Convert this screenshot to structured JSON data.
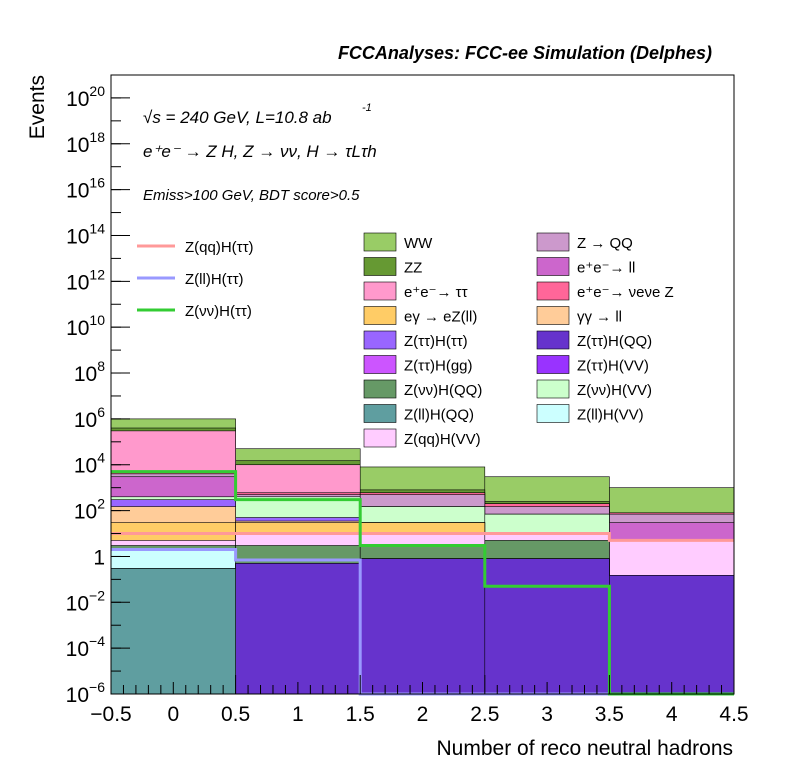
{
  "chart_data": {
    "type": "stacked-step-histogram",
    "title": "FCCAnalyses: FCC-ee Simulation (Delphes)",
    "annotations": {
      "energy": "√s = 240 GeV, L=10.8 ab",
      "energy_sup": "-1",
      "process": "e⁺e⁻ → Z H, Z → νν, H → τLτh",
      "selection": "Emiss>100 GeV, BDT score>0.5"
    },
    "xlabel": "Number of reco neutral hadrons",
    "ylabel": "Events",
    "xlim": [
      -0.5,
      4.5
    ],
    "ylim": [
      1e-06,
      1e+21
    ],
    "yscale": "log",
    "bin_edges": [
      -0.5,
      0.5,
      1.5,
      2.5,
      3.5,
      4.5
    ],
    "x_ticks": [
      "−0.5",
      "0",
      "0.5",
      "1",
      "1.5",
      "2",
      "2.5",
      "3",
      "3.5",
      "4",
      "4.5"
    ],
    "y_ticks": [
      {
        "base": "10",
        "exp": "−6",
        "value": 1e-06
      },
      {
        "base": "10",
        "exp": "−4",
        "value": 0.0001
      },
      {
        "base": "10",
        "exp": "−2",
        "value": 0.01
      },
      {
        "base": "1",
        "exp": "",
        "value": 1
      },
      {
        "base": "10",
        "exp": "2",
        "value": 100.0
      },
      {
        "base": "10",
        "exp": "4",
        "value": 10000.0
      },
      {
        "base": "10",
        "exp": "6",
        "value": 1000000.0
      },
      {
        "base": "10",
        "exp": "8",
        "value": 100000000.0
      },
      {
        "base": "10",
        "exp": "10",
        "value": 10000000000.0
      },
      {
        "base": "10",
        "exp": "12",
        "value": 1000000000000.0
      },
      {
        "base": "10",
        "exp": "14",
        "value": 100000000000000.0
      },
      {
        "base": "10",
        "exp": "16",
        "value": 1e+16
      },
      {
        "base": "10",
        "exp": "18",
        "value": 1e+18
      },
      {
        "base": "10",
        "exp": "20",
        "value": 1e+20
      }
    ],
    "stack_cumulative": [
      {
        "name": "Z(ll)H(QQ)",
        "color": "#5f9ea0",
        "values": [
          0.3,
          1e-06,
          1e-06,
          1e-06,
          1e-06
        ]
      },
      {
        "name": "Z(ττ)H(QQ)",
        "color": "#6633cc",
        "values": [
          0.3,
          0.5,
          0.8,
          0.8,
          0.15
        ]
      },
      {
        "name": "Z(ττ)H(gg)",
        "color": "#cc55ff",
        "values": [
          0.3,
          0.5,
          0.8,
          0.8,
          0.15
        ]
      },
      {
        "name": "Z(ll)H(VV)",
        "color": "#ccffff",
        "values": [
          2,
          0.5,
          0.8,
          0.8,
          0.15
        ]
      },
      {
        "name": "Z(νν)H(QQ)",
        "color": "#669966",
        "values": [
          3,
          3,
          3,
          5,
          0.15
        ]
      },
      {
        "name": "Z(qq)H(VV)",
        "color": "#ffccff",
        "values": [
          5,
          10,
          10,
          10,
          5
        ]
      },
      {
        "name": "eγ → eZ(ll)",
        "color": "#ffcc66",
        "values": [
          30,
          30,
          30,
          10,
          5
        ]
      },
      {
        "name": "γγ → ll",
        "color": "#ffcc99",
        "values": [
          150,
          35,
          30,
          10,
          5
        ]
      },
      {
        "name": "Z(ττ)H(ττ)",
        "color": "#9966ff",
        "values": [
          300,
          50,
          30,
          10,
          5
        ]
      },
      {
        "name": "Z(νν)H(VV)",
        "color": "#ccffcc",
        "values": [
          400,
          400,
          150,
          70,
          5
        ]
      },
      {
        "name": "e⁺e⁻→ ll",
        "color": "#cc66cc",
        "values": [
          3000,
          400,
          150,
          70,
          30
        ]
      },
      {
        "name": "Z → QQ",
        "color": "#cc99cc",
        "values": [
          4000,
          500,
          500,
          150,
          70
        ]
      },
      {
        "name": "e⁺e⁻→ νeνe Z",
        "color": "#ff6699",
        "values": [
          5000,
          600,
          600,
          200,
          80
        ]
      },
      {
        "name": "e⁺e⁻→ ττ",
        "color": "#ff99cc",
        "values": [
          300000,
          10000,
          600,
          200,
          80
        ]
      },
      {
        "name": "ZZ",
        "color": "#669933",
        "values": [
          400000,
          15000,
          800,
          250,
          80
        ]
      },
      {
        "name": "WW",
        "color": "#99cc66",
        "values": [
          1000000,
          50000,
          8000,
          3000,
          1000
        ]
      }
    ],
    "signal_series": [
      {
        "name": "Z(qq)H(ττ)",
        "color": "#ff9999",
        "values": [
          10,
          10,
          10,
          10,
          5
        ]
      },
      {
        "name": "Z(ll)H(ττ)",
        "color": "#9999ff",
        "values": [
          2,
          0.7,
          1e-06,
          1e-06,
          1e-06
        ]
      },
      {
        "name": "Z(νν)H(ττ)",
        "color": "#33cc33",
        "values": [
          5000,
          300,
          3,
          0.05,
          1e-06
        ]
      }
    ],
    "legend_left": [
      {
        "label": "Z(qq)H(ττ)",
        "color": "#ff9999"
      },
      {
        "label": "Z(ll)H(ττ)",
        "color": "#9999ff"
      },
      {
        "label": "Z(νν)H(ττ)",
        "color": "#33cc33"
      }
    ],
    "legend_col1": [
      {
        "label": "WW",
        "color": "#99cc66"
      },
      {
        "label": "ZZ",
        "color": "#669933"
      },
      {
        "label": "e⁺e⁻→ ττ",
        "color": "#ff99cc"
      },
      {
        "label": "eγ → eZ(ll)",
        "color": "#ffcc66"
      },
      {
        "label": "Z(ττ)H(ττ)",
        "color": "#9966ff"
      },
      {
        "label": "Z(ττ)H(gg)",
        "color": "#cc55ff"
      },
      {
        "label": "Z(νν)H(QQ)",
        "color": "#669966"
      },
      {
        "label": "Z(ll)H(QQ)",
        "color": "#5f9ea0"
      },
      {
        "label": "Z(qq)H(VV)",
        "color": "#ffccff"
      }
    ],
    "legend_col2": [
      {
        "label": "Z → QQ",
        "color": "#cc99cc"
      },
      {
        "label": "e⁺e⁻→ ll",
        "color": "#cc66cc"
      },
      {
        "label": "e⁺e⁻→ νeνe Z",
        "color": "#ff6699"
      },
      {
        "label": "γγ → ll",
        "color": "#ffcc99"
      },
      {
        "label": "Z(ττ)H(QQ)",
        "color": "#6633cc"
      },
      {
        "label": "Z(ττ)H(VV)",
        "color": "#9933ff"
      },
      {
        "label": "Z(νν)H(VV)",
        "color": "#ccffcc"
      },
      {
        "label": "Z(ll)H(VV)",
        "color": "#ccffff"
      }
    ]
  }
}
